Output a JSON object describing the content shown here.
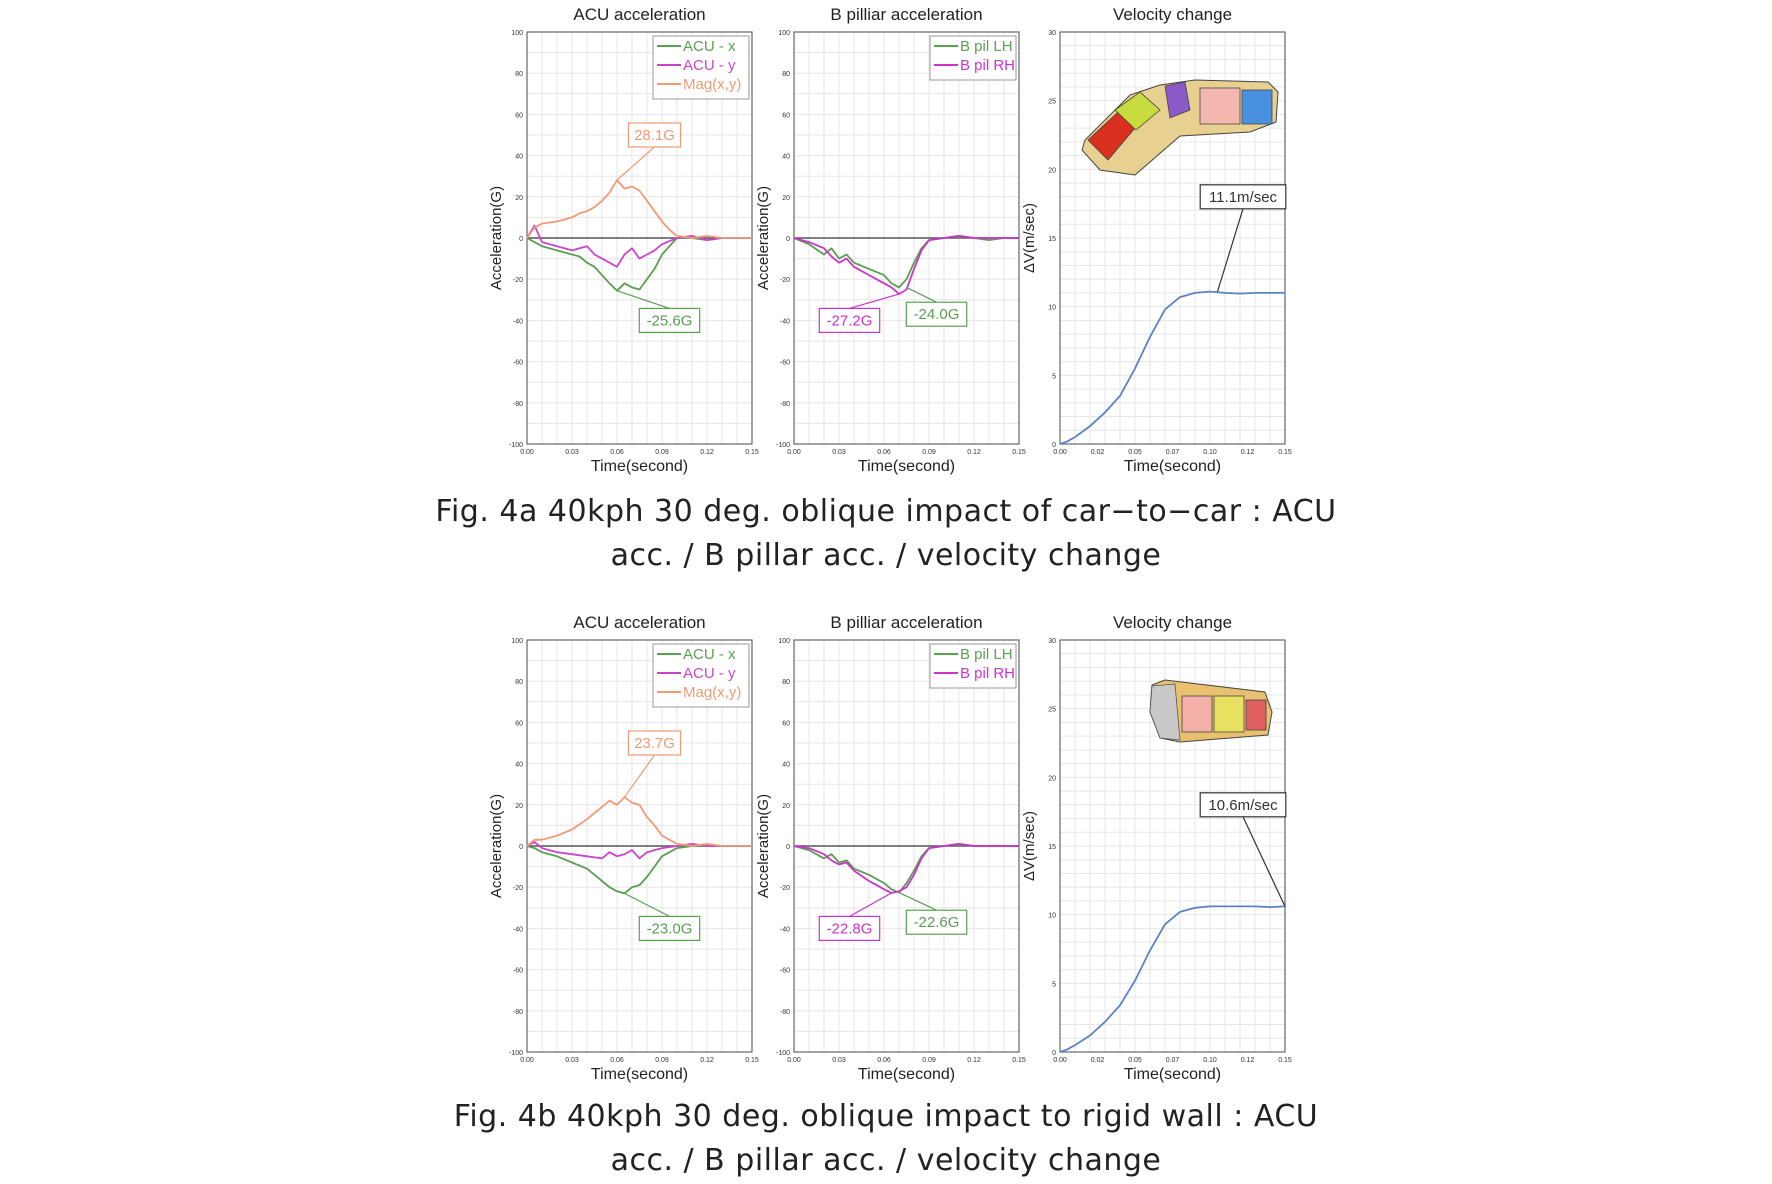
{
  "figures": [
    {
      "caption_line1": "Fig. 4a 40kph 30 deg. oblique impact of car−to−car : ACU",
      "caption_line2": "acc. / B pillar acc. / velocity change",
      "panels": [
        {
          "title": "ACU acceleration",
          "xlabel": "Time(second)",
          "ylabel": "Acceleration(G)",
          "xticks": [
            "0.00",
            "0.03",
            "0.06",
            "0.09",
            "0.12",
            "0.15"
          ],
          "yticks": [
            "100",
            "80",
            "60",
            "40",
            "20",
            "0",
            "-20",
            "-40",
            "-60",
            "-80",
            "-100"
          ],
          "legend": [
            "ACU - x",
            "ACU - y",
            "Mag(x,y)"
          ],
          "annotations": [
            "28.1G",
            "-25.6G"
          ]
        },
        {
          "title": "B pilliar acceleration",
          "xlabel": "Time(second)",
          "ylabel": "Acceleration(G)",
          "xticks": [
            "0.00",
            "0.03",
            "0.06",
            "0.09",
            "0.12",
            "0.15"
          ],
          "yticks": [
            "100",
            "80",
            "60",
            "40",
            "20",
            "0",
            "-20",
            "-40",
            "-60",
            "-80",
            "-100"
          ],
          "legend": [
            "B pil LH",
            "B pil RH"
          ],
          "annotations": [
            "-27.2G",
            "-24.0G"
          ]
        },
        {
          "title": "Velocity change",
          "xlabel": "Time(second)",
          "ylabel": "ΔV(m/sec)",
          "xticks": [
            "0.00",
            "0.02",
            "0.05",
            "0.07",
            "0.10",
            "0.12",
            "0.15"
          ],
          "yticks": [
            "30",
            "25",
            "20",
            "15",
            "10",
            "5",
            "0"
          ],
          "legend": [],
          "annotations": [
            "11.1m/sec"
          ]
        }
      ]
    },
    {
      "caption_line1": "Fig. 4b 40kph 30 deg. oblique impact to rigid wall : ACU",
      "caption_line2": "acc. / B pillar acc. / velocity change",
      "panels": [
        {
          "title": "ACU acceleration",
          "xlabel": "Time(second)",
          "ylabel": "Acceleration(G)",
          "xticks": [
            "0.00",
            "0.03",
            "0.06",
            "0.09",
            "0.12",
            "0.15"
          ],
          "yticks": [
            "100",
            "80",
            "60",
            "40",
            "20",
            "0",
            "-20",
            "-40",
            "-60",
            "-80",
            "-100"
          ],
          "legend": [
            "ACU - x",
            "ACU - y",
            "Mag(x,y)"
          ],
          "annotations": [
            "23.7G",
            "-23.0G"
          ]
        },
        {
          "title": "B pilliar acceleration",
          "xlabel": "Time(second)",
          "ylabel": "Acceleration(G)",
          "xticks": [
            "0.00",
            "0.03",
            "0.06",
            "0.09",
            "0.12",
            "0.15"
          ],
          "yticks": [
            "100",
            "80",
            "60",
            "40",
            "20",
            "0",
            "-20",
            "-40",
            "-60",
            "-80",
            "-100"
          ],
          "legend": [
            "B pil LH",
            "B pil RH"
          ],
          "annotations": [
            "-22.8G",
            "-22.6G"
          ]
        },
        {
          "title": "Velocity change",
          "xlabel": "Time(second)",
          "ylabel": "ΔV(m/sec)",
          "xticks": [
            "0.00",
            "0.02",
            "0.05",
            "0.07",
            "0.10",
            "0.12",
            "0.15"
          ],
          "yticks": [
            "30",
            "25",
            "20",
            "15",
            "10",
            "5",
            "0"
          ],
          "legend": [],
          "annotations": [
            "10.6m/sec"
          ]
        }
      ]
    }
  ],
  "colors": {
    "acu_x": "#5a9e52",
    "acu_y": "#cc44cc",
    "mag": "#f09a78",
    "lh": "#5a9e52",
    "rh": "#cc33cc",
    "velocity": "#5b82c8",
    "grid": "#e6e6e6",
    "zero_line": "#555555"
  },
  "chart_data": [
    {
      "type": "line",
      "title": "ACU acceleration",
      "xlabel": "Time(second)",
      "ylabel": "Acceleration(G)",
      "xlim": [
        0,
        0.15
      ],
      "ylim": [
        -100,
        100
      ],
      "grid": true,
      "legend_position": "top-right",
      "series": [
        {
          "name": "ACU - x",
          "x": [
            0,
            0.005,
            0.01,
            0.02,
            0.03,
            0.035,
            0.04,
            0.045,
            0.05,
            0.055,
            0.06,
            0.065,
            0.07,
            0.075,
            0.08,
            0.085,
            0.09,
            0.095,
            0.1,
            0.11,
            0.12,
            0.13,
            0.14,
            0.15
          ],
          "y": [
            0,
            -2,
            -4,
            -6,
            -8,
            -9,
            -12,
            -14,
            -18,
            -22,
            -25.6,
            -22,
            -24,
            -25,
            -20,
            -15,
            -8,
            -4,
            0,
            0,
            -1,
            0,
            0,
            0
          ]
        },
        {
          "name": "ACU - y",
          "x": [
            0,
            0.005,
            0.01,
            0.02,
            0.03,
            0.04,
            0.045,
            0.05,
            0.055,
            0.06,
            0.065,
            0.07,
            0.075,
            0.08,
            0.085,
            0.09,
            0.1,
            0.11,
            0.12,
            0.13,
            0.14,
            0.15
          ],
          "y": [
            0,
            6,
            -2,
            -4,
            -6,
            -4,
            -8,
            -10,
            -12,
            -14,
            -8,
            -5,
            -10,
            -8,
            -6,
            -3,
            0,
            1,
            -1,
            0,
            0,
            0
          ]
        },
        {
          "name": "Mag(x,y)",
          "x": [
            0,
            0.005,
            0.01,
            0.02,
            0.03,
            0.035,
            0.04,
            0.045,
            0.05,
            0.055,
            0.06,
            0.065,
            0.07,
            0.075,
            0.08,
            0.085,
            0.09,
            0.095,
            0.1,
            0.11,
            0.12,
            0.13,
            0.14,
            0.15
          ],
          "y": [
            0,
            5,
            7,
            8,
            10,
            12,
            13,
            15,
            18,
            22,
            28.1,
            24,
            25,
            23,
            18,
            13,
            8,
            4,
            1,
            0,
            1,
            0,
            0,
            0
          ]
        }
      ],
      "annotations": [
        {
          "text": "28.1G",
          "x": 0.06,
          "y": 28.1
        },
        {
          "text": "-25.6G",
          "x": 0.06,
          "y": -25.6
        }
      ]
    },
    {
      "type": "line",
      "title": "B pilliar acceleration",
      "xlabel": "Time(second)",
      "ylabel": "Acceleration(G)",
      "xlim": [
        0,
        0.15
      ],
      "ylim": [
        -100,
        100
      ],
      "grid": true,
      "legend_position": "top-right",
      "series": [
        {
          "name": "B pil LH",
          "x": [
            0,
            0.01,
            0.02,
            0.025,
            0.03,
            0.035,
            0.04,
            0.05,
            0.06,
            0.065,
            0.07,
            0.075,
            0.08,
            0.085,
            0.09,
            0.1,
            0.11,
            0.12,
            0.13,
            0.14,
            0.15
          ],
          "y": [
            0,
            -3,
            -8,
            -5,
            -10,
            -8,
            -12,
            -15,
            -18,
            -22,
            -24,
            -20,
            -12,
            -5,
            -1,
            0,
            1,
            0,
            -1,
            0,
            0
          ]
        },
        {
          "name": "B pil RH",
          "x": [
            0,
            0.01,
            0.02,
            0.025,
            0.03,
            0.035,
            0.04,
            0.05,
            0.055,
            0.06,
            0.065,
            0.07,
            0.075,
            0.08,
            0.085,
            0.09,
            0.1,
            0.11,
            0.12,
            0.13,
            0.14,
            0.15
          ],
          "y": [
            0,
            -2,
            -5,
            -9,
            -12,
            -10,
            -14,
            -18,
            -20,
            -22,
            -24,
            -27.2,
            -25,
            -15,
            -6,
            -1,
            0,
            1,
            0,
            0,
            0,
            0
          ]
        }
      ],
      "annotations": [
        {
          "text": "-27.2G",
          "x": 0.07,
          "y": -27.2
        },
        {
          "text": "-24.0G",
          "x": 0.075,
          "y": -24.0
        }
      ]
    },
    {
      "type": "line",
      "title": "Velocity change",
      "xlabel": "Time(second)",
      "ylabel": "ΔV(m/sec)",
      "xlim": [
        0,
        0.15
      ],
      "ylim": [
        0,
        30
      ],
      "grid": true,
      "series": [
        {
          "name": "",
          "x": [
            0,
            0.005,
            0.01,
            0.02,
            0.03,
            0.04,
            0.05,
            0.06,
            0.07,
            0.08,
            0.09,
            0.1,
            0.11,
            0.12,
            0.13,
            0.14,
            0.15
          ],
          "y": [
            0,
            0.2,
            0.5,
            1.3,
            2.3,
            3.5,
            5.5,
            7.8,
            9.8,
            10.7,
            11.0,
            11.1,
            11.0,
            10.95,
            11.0,
            11.0,
            11.0
          ]
        }
      ],
      "annotations": [
        {
          "text": "11.1m/sec",
          "x": 0.105,
          "y": 11.1
        }
      ]
    },
    {
      "type": "line",
      "title": "ACU acceleration",
      "xlabel": "Time(second)",
      "ylabel": "Acceleration(G)",
      "xlim": [
        0,
        0.15
      ],
      "ylim": [
        -100,
        100
      ],
      "grid": true,
      "legend_position": "top-right",
      "series": [
        {
          "name": "ACU - x",
          "x": [
            0,
            0.005,
            0.01,
            0.02,
            0.03,
            0.04,
            0.045,
            0.05,
            0.055,
            0.06,
            0.065,
            0.07,
            0.075,
            0.08,
            0.085,
            0.09,
            0.1,
            0.11,
            0.12,
            0.13,
            0.14,
            0.15
          ],
          "y": [
            0,
            -1,
            -3,
            -5,
            -8,
            -11,
            -14,
            -17,
            -20,
            -22,
            -23,
            -20,
            -19,
            -15,
            -10,
            -5,
            -1,
            0,
            0,
            0,
            0,
            0
          ]
        },
        {
          "name": "ACU - y",
          "x": [
            0,
            0.005,
            0.01,
            0.02,
            0.03,
            0.04,
            0.05,
            0.055,
            0.06,
            0.065,
            0.07,
            0.075,
            0.08,
            0.085,
            0.09,
            0.1,
            0.11,
            0.12,
            0.13,
            0.14,
            0.15
          ],
          "y": [
            0,
            2,
            -1,
            -3,
            -4,
            -5,
            -6,
            -3,
            -5,
            -4,
            -2,
            -6,
            -3,
            -2,
            -1,
            0,
            1,
            0,
            0,
            0,
            0
          ]
        },
        {
          "name": "Mag(x,y)",
          "x": [
            0,
            0.005,
            0.01,
            0.02,
            0.03,
            0.04,
            0.045,
            0.05,
            0.055,
            0.06,
            0.065,
            0.07,
            0.075,
            0.08,
            0.085,
            0.09,
            0.1,
            0.11,
            0.12,
            0.13,
            0.14,
            0.15
          ],
          "y": [
            0,
            3,
            3,
            5,
            8,
            13,
            16,
            19,
            22,
            20,
            23.7,
            21,
            20,
            14,
            10,
            5,
            1,
            0,
            1,
            0,
            0,
            0
          ]
        }
      ],
      "annotations": [
        {
          "text": "23.7G",
          "x": 0.065,
          "y": 23.7
        },
        {
          "text": "-23.0G",
          "x": 0.065,
          "y": -23.0
        }
      ]
    },
    {
      "type": "line",
      "title": "B pilliar acceleration",
      "xlabel": "Time(second)",
      "ylabel": "Acceleration(G)",
      "xlim": [
        0,
        0.15
      ],
      "ylim": [
        -100,
        100
      ],
      "grid": true,
      "legend_position": "top-right",
      "series": [
        {
          "name": "B pil LH",
          "x": [
            0,
            0.01,
            0.02,
            0.025,
            0.03,
            0.035,
            0.04,
            0.05,
            0.06,
            0.065,
            0.07,
            0.075,
            0.08,
            0.085,
            0.09,
            0.1,
            0.11,
            0.12,
            0.13,
            0.14,
            0.15
          ],
          "y": [
            0,
            -2,
            -6,
            -4,
            -8,
            -7,
            -11,
            -14,
            -18,
            -21,
            -22.6,
            -18,
            -12,
            -5,
            -1,
            0,
            1,
            0,
            0,
            0,
            0
          ]
        },
        {
          "name": "B pil RH",
          "x": [
            0,
            0.01,
            0.02,
            0.025,
            0.03,
            0.035,
            0.04,
            0.05,
            0.055,
            0.06,
            0.065,
            0.07,
            0.075,
            0.08,
            0.085,
            0.09,
            0.1,
            0.11,
            0.12,
            0.13,
            0.14,
            0.15
          ],
          "y": [
            0,
            -1,
            -4,
            -7,
            -9,
            -8,
            -12,
            -17,
            -19,
            -21,
            -22.8,
            -22,
            -20,
            -14,
            -6,
            -1,
            0,
            1,
            0,
            0,
            0,
            0
          ]
        }
      ],
      "annotations": [
        {
          "text": "-22.8G",
          "x": 0.065,
          "y": -22.8
        },
        {
          "text": "-22.6G",
          "x": 0.07,
          "y": -22.6
        }
      ]
    },
    {
      "type": "line",
      "title": "Velocity change",
      "xlabel": "Time(second)",
      "ylabel": "ΔV(m/sec)",
      "xlim": [
        0,
        0.15
      ],
      "ylim": [
        0,
        30
      ],
      "grid": true,
      "series": [
        {
          "name": "",
          "x": [
            0,
            0.005,
            0.01,
            0.02,
            0.03,
            0.04,
            0.05,
            0.06,
            0.07,
            0.08,
            0.09,
            0.1,
            0.11,
            0.12,
            0.13,
            0.14,
            0.15
          ],
          "y": [
            0,
            0.2,
            0.5,
            1.2,
            2.2,
            3.4,
            5.2,
            7.4,
            9.3,
            10.2,
            10.5,
            10.6,
            10.6,
            10.6,
            10.6,
            10.55,
            10.6
          ]
        }
      ],
      "annotations": [
        {
          "text": "10.6m/sec",
          "x": 0.15,
          "y": 10.6
        }
      ]
    }
  ]
}
